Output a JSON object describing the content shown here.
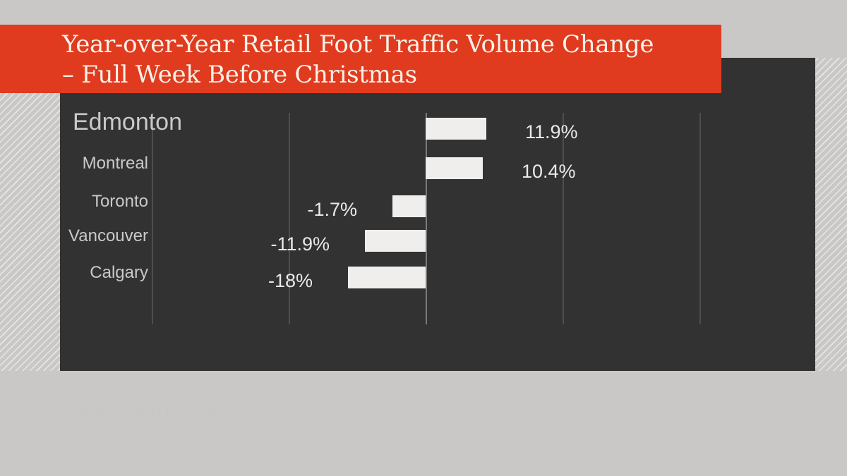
{
  "banner": {
    "title_line1": "Year-over-Year Retail Foot Traffic Volume Change",
    "title_line2": "– Full Week Before Christmas",
    "bg_color": "#e03b1f",
    "text_color": "#f8f1e7"
  },
  "chart_data": {
    "type": "bar",
    "orientation": "horizontal",
    "title": "Year-over-Year Retail Foot Traffic Volume Change – Full Week Before Christmas",
    "categories": [
      "Edmonton",
      "Montreal",
      "Toronto",
      "Vancouver",
      "Calgary"
    ],
    "values": [
      11.9,
      10.4,
      -1.7,
      -11.9,
      -18
    ],
    "value_labels": [
      "11.9%",
      "10.4%",
      "-1.7%",
      "-11.9%",
      "-18%"
    ],
    "unit": "%",
    "xlim": [
      -22,
      28
    ],
    "gridlines_pct": [
      -20,
      -10,
      0,
      10,
      20
    ],
    "grid": true,
    "legend": false,
    "bar_color": "#efeeec",
    "panel_color": "#333232",
    "label_color": "#c9c9c9",
    "source": "Source: AVANT by Avison Young"
  }
}
